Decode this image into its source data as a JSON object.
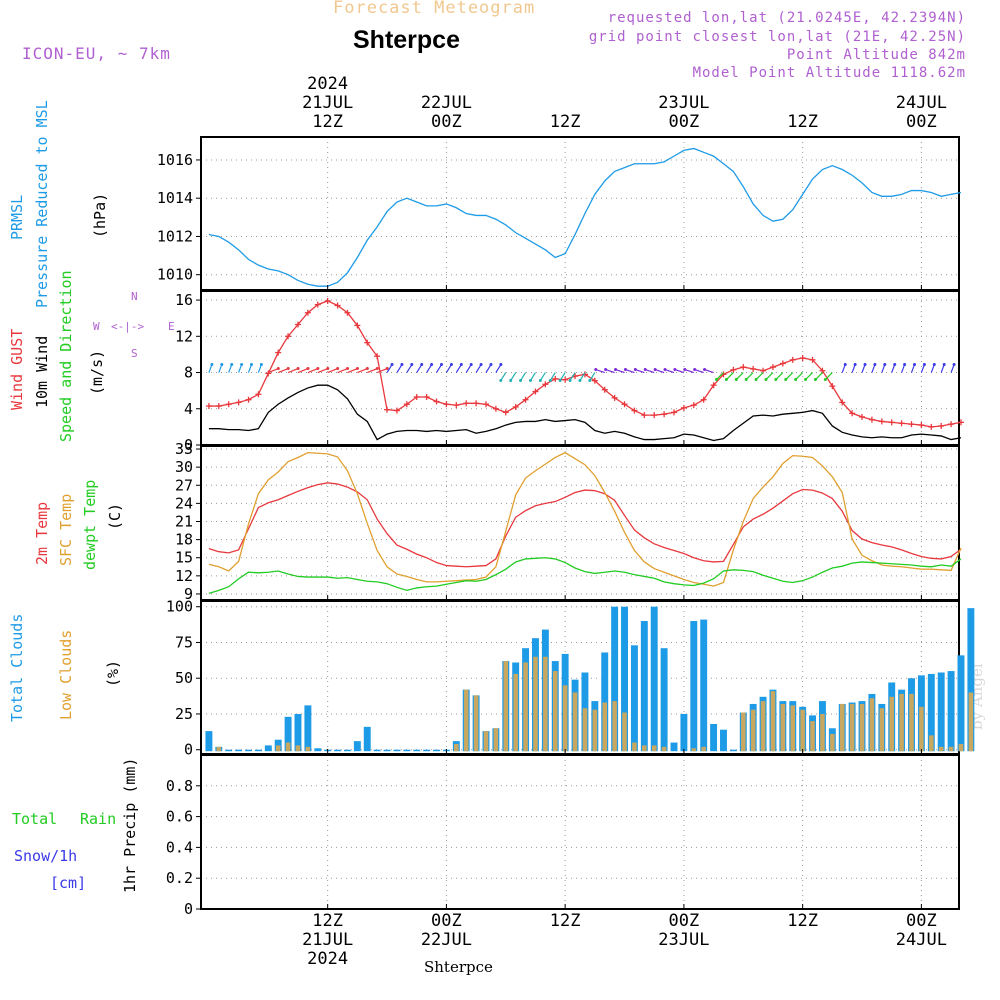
{
  "header": {
    "subtitle": "Forecast Meteogram",
    "location": "Shterpce",
    "model": "ICON-EU, ~ 7km",
    "requested": "requested lon,lat (21.0245E, 42.2394N)",
    "grid_point": "grid point closest lon,lat (21E, 42.25N)",
    "point_altitude": "Point Altitude 842m",
    "model_altitude": "Model Point Altitude 1118.62m",
    "footer_location": "Shterpce",
    "signature": "by Angel"
  },
  "time_axis_top": [
    {
      "h": 12,
      "lines": [
        "2024",
        "21JUL",
        "12Z"
      ]
    },
    {
      "h": 24,
      "lines": [
        "22JUL",
        "00Z"
      ]
    },
    {
      "h": 36,
      "lines": [
        "12Z"
      ]
    },
    {
      "h": 48,
      "lines": [
        "23JUL",
        "00Z"
      ]
    },
    {
      "h": 60,
      "lines": [
        "12Z"
      ]
    },
    {
      "h": 72,
      "lines": [
        "24JUL",
        "00Z"
      ]
    }
  ],
  "time_axis_bottom": [
    {
      "h": 12,
      "lines": [
        "12Z",
        "21JUL",
        "2024"
      ]
    },
    {
      "h": 24,
      "lines": [
        "00Z",
        "22JUL"
      ]
    },
    {
      "h": 36,
      "lines": [
        "12Z"
      ]
    },
    {
      "h": 48,
      "lines": [
        "00Z",
        "23JUL"
      ]
    },
    {
      "h": 60,
      "lines": [
        "12Z"
      ]
    },
    {
      "h": 72,
      "lines": [
        "00Z",
        "24JUL"
      ]
    }
  ],
  "panel_labels": {
    "pressure": {
      "line1": "PRMSL",
      "line2": "Pressure Reduced to MSL",
      "unit": "(hPa)"
    },
    "wind": {
      "gust": "Wind GUST",
      "wind10": "10m Wind",
      "speed_dir": "Speed and Direction",
      "unit": "(m/s)",
      "compass_n": "N",
      "compass_s": "S",
      "compass_w": "W",
      "compass_e": "E"
    },
    "temp": {
      "t2m": "2m Temp",
      "sfc": "SFC Temp",
      "dewpt": "dewpt Temp",
      "unit": "(C)"
    },
    "clouds": {
      "total": "Total Clouds",
      "low": "Low Clouds",
      "unit": "(%)"
    },
    "precip": {
      "total": "Total",
      "rain": "Rain",
      "snow": "Snow/1h",
      "snow_unit": "[cm]",
      "axis": "1hr Precip (mm)"
    }
  },
  "colors": {
    "pressure": "#1e9be6",
    "gust": "#e8383d",
    "wind10": "#000000",
    "t2m": "#e8383d",
    "sfc": "#e0a030",
    "dewpt": "#22cc22",
    "total_cloud": "#1e9be6",
    "low_cloud": "#c8a860",
    "total_rain": "#22cc22",
    "snow": "#3a3ae6",
    "model": "#b060d0",
    "subtitle": "#f0c890"
  },
  "chart_data": [
    {
      "type": "line",
      "title": "PRMSL Pressure Reduced to MSL",
      "ylabel": "(hPa)",
      "x_unit": "hours from 21JUL 00Z",
      "ylim": [
        1009.2,
        1017.2
      ],
      "yticks": [
        1010,
        1012,
        1014,
        1016
      ],
      "series": [
        {
          "name": "PRMSL",
          "x": [
            0,
            1,
            2,
            3,
            4,
            5,
            6,
            7,
            8,
            9,
            10,
            11,
            12,
            13,
            14,
            15,
            16,
            17,
            18,
            19,
            20,
            21,
            22,
            23,
            24,
            25,
            26,
            27,
            28,
            29,
            30,
            31,
            32,
            33,
            34,
            35,
            36,
            37,
            38,
            39,
            40,
            41,
            42,
            43,
            44,
            45,
            46,
            47,
            48,
            49,
            50,
            51,
            52,
            53,
            54,
            55,
            56,
            57,
            58,
            59,
            60,
            61,
            62,
            63,
            64,
            65,
            66,
            67,
            68,
            69,
            70,
            71,
            72,
            73,
            74,
            75,
            76
          ],
          "values": [
            1012.1,
            1012.0,
            1011.7,
            1011.3,
            1010.8,
            1010.5,
            1010.3,
            1010.2,
            1010.0,
            1009.7,
            1009.5,
            1009.4,
            1009.4,
            1009.6,
            1010.1,
            1010.9,
            1011.8,
            1012.5,
            1013.3,
            1013.8,
            1014.0,
            1013.8,
            1013.6,
            1013.6,
            1013.7,
            1013.5,
            1013.2,
            1013.1,
            1013.1,
            1012.9,
            1012.6,
            1012.2,
            1011.9,
            1011.6,
            1011.3,
            1010.9,
            1011.1,
            1012.1,
            1013.2,
            1014.2,
            1014.9,
            1015.4,
            1015.6,
            1015.8,
            1015.8,
            1015.8,
            1015.9,
            1016.2,
            1016.5,
            1016.6,
            1016.4,
            1016.2,
            1015.8,
            1015.4,
            1014.6,
            1013.7,
            1013.1,
            1012.8,
            1012.9,
            1013.4,
            1014.2,
            1015.0,
            1015.5,
            1015.7,
            1015.5,
            1015.2,
            1014.8,
            1014.3,
            1014.1,
            1014.1,
            1014.2,
            1014.4,
            1014.4,
            1014.3,
            1014.1,
            1014.2,
            1014.3
          ]
        }
      ]
    },
    {
      "type": "line",
      "title": "Wind GUST / 10m Wind Speed and Direction",
      "ylabel": "(m/s)",
      "ylim": [
        0,
        17
      ],
      "yticks": [
        0,
        4,
        8,
        12,
        16
      ],
      "series": [
        {
          "name": "Wind GUST",
          "values": [
            4.3,
            4.3,
            4.5,
            4.7,
            5.0,
            5.6,
            7.9,
            10.2,
            12.0,
            13.3,
            14.6,
            15.5,
            15.9,
            15.4,
            14.6,
            13.2,
            11.3,
            9.8,
            3.9,
            3.8,
            4.5,
            5.3,
            5.3,
            4.8,
            4.5,
            4.4,
            4.6,
            4.6,
            4.5,
            4.0,
            3.6,
            4.2,
            5.0,
            5.9,
            6.7,
            7.3,
            7.2,
            7.6,
            7.8,
            7.1,
            6.1,
            5.2,
            4.5,
            3.8,
            3.3,
            3.3,
            3.4,
            3.6,
            4.1,
            4.4,
            5.0,
            6.6,
            7.8,
            8.3,
            8.6,
            8.4,
            8.2,
            8.6,
            9.0,
            9.4,
            9.6,
            9.4,
            8.2,
            6.5,
            4.7,
            3.5,
            3.1,
            2.8,
            2.6,
            2.5,
            2.4,
            2.3,
            2.2,
            2.0,
            2.1,
            2.3,
            2.5
          ]
        },
        {
          "name": "10m Wind",
          "values": [
            1.8,
            1.8,
            1.7,
            1.7,
            1.6,
            1.8,
            3.6,
            4.5,
            5.2,
            5.8,
            6.3,
            6.6,
            6.6,
            6.1,
            5.1,
            3.4,
            2.6,
            0.6,
            1.2,
            1.5,
            1.6,
            1.6,
            1.5,
            1.6,
            1.5,
            1.6,
            1.7,
            1.3,
            1.5,
            1.8,
            2.2,
            2.5,
            2.6,
            2.6,
            2.8,
            2.6,
            2.7,
            2.8,
            2.5,
            1.6,
            1.3,
            1.5,
            1.3,
            0.9,
            0.6,
            0.6,
            0.7,
            0.8,
            1.2,
            1.1,
            0.8,
            0.5,
            0.7,
            1.6,
            2.4,
            3.2,
            3.3,
            3.2,
            3.4,
            3.5,
            3.6,
            3.8,
            3.5,
            2.1,
            1.4,
            1.1,
            0.9,
            0.8,
            0.9,
            0.8,
            0.8,
            1.1,
            1.2,
            1.1,
            1.0,
            0.6,
            0.8
          ]
        }
      ]
    },
    {
      "type": "line",
      "title": "2m Temp / SFC Temp / dewpt Temp",
      "ylabel": "(C)",
      "ylim": [
        8,
        33.5
      ],
      "yticks": [
        9,
        12,
        15,
        18,
        21,
        24,
        27,
        30,
        33
      ],
      "series": [
        {
          "name": "2m Temp",
          "values": [
            16.5,
            16.0,
            15.8,
            16.3,
            19.8,
            23.3,
            24.1,
            24.6,
            25.3,
            26.0,
            26.6,
            27.1,
            27.4,
            27.2,
            26.7,
            25.9,
            24.6,
            21.4,
            19.0,
            17.1,
            16.4,
            15.6,
            15.0,
            14.2,
            13.7,
            13.6,
            13.5,
            13.6,
            13.7,
            14.8,
            18.6,
            21.7,
            22.8,
            23.6,
            24.0,
            24.3,
            25.0,
            25.8,
            26.2,
            26.1,
            25.6,
            24.5,
            22.0,
            19.6,
            18.3,
            17.3,
            16.7,
            16.2,
            15.7,
            15.0,
            14.5,
            14.3,
            14.4,
            17.2,
            20.1,
            21.4,
            22.2,
            23.2,
            24.4,
            25.6,
            26.3,
            26.2,
            25.7,
            24.8,
            22.7,
            19.5,
            18.1,
            17.5,
            17.1,
            16.8,
            16.3,
            15.7,
            15.2,
            14.9,
            14.8,
            15.2,
            16.4
          ]
        },
        {
          "name": "SFC Temp",
          "values": [
            13.9,
            13.5,
            12.8,
            14.4,
            20.6,
            25.6,
            27.9,
            29.2,
            30.9,
            31.6,
            32.4,
            32.3,
            32.2,
            31.7,
            29.4,
            25.6,
            20.7,
            16.2,
            13.5,
            12.3,
            11.9,
            11.4,
            11.0,
            11.0,
            11.1,
            11.2,
            11.3,
            11.4,
            11.8,
            13.5,
            19.4,
            25.4,
            28.2,
            29.4,
            30.5,
            31.6,
            32.4,
            31.4,
            30.4,
            28.6,
            25.8,
            22.7,
            19.2,
            16.2,
            14.3,
            13.2,
            12.6,
            12.0,
            11.4,
            10.9,
            10.6,
            10.3,
            10.9,
            16.3,
            21.0,
            24.8,
            26.7,
            28.4,
            30.6,
            31.9,
            31.8,
            31.6,
            30.2,
            28.4,
            25.8,
            18.1,
            15.4,
            14.5,
            13.8,
            13.6,
            13.5,
            13.3,
            13.1,
            13.1,
            13.0,
            12.9,
            16.6
          ]
        },
        {
          "name": "dewpt Temp",
          "values": [
            9.1,
            9.6,
            10.2,
            11.5,
            12.6,
            12.5,
            12.6,
            12.8,
            12.3,
            11.9,
            11.8,
            11.8,
            11.8,
            11.6,
            11.7,
            11.4,
            11.1,
            11.0,
            10.7,
            10.1,
            9.6,
            10.0,
            10.2,
            10.3,
            10.6,
            10.9,
            11.2,
            11.1,
            11.4,
            12.2,
            13.1,
            14.3,
            14.8,
            14.9,
            15.0,
            14.8,
            14.2,
            13.3,
            12.7,
            12.4,
            12.6,
            12.8,
            12.6,
            12.2,
            11.9,
            11.6,
            11.0,
            10.7,
            10.5,
            10.4,
            10.8,
            11.5,
            12.8,
            13.0,
            12.9,
            12.7,
            12.1,
            11.6,
            11.1,
            10.9,
            11.2,
            11.8,
            12.6,
            13.3,
            13.6,
            14.1,
            14.3,
            14.2,
            14.1,
            14.0,
            13.9,
            13.8,
            13.6,
            13.5,
            13.8,
            13.6,
            14.8
          ]
        }
      ]
    },
    {
      "type": "bar",
      "title": "Total Clouds / Low Clouds",
      "ylabel": "(%)",
      "ylim": [
        -3,
        104
      ],
      "yticks": [
        0,
        25,
        50,
        75,
        100
      ],
      "series": [
        {
          "name": "Total Clouds",
          "values": [
            13,
            2,
            0,
            0,
            0,
            0,
            3,
            7,
            23,
            25,
            31,
            1,
            0,
            0,
            0,
            6,
            16,
            0,
            0,
            0,
            0,
            0,
            0,
            0,
            0,
            6,
            42,
            38,
            13,
            15,
            62,
            61,
            71,
            78,
            84,
            62,
            67,
            49,
            54,
            34,
            68,
            100,
            100,
            73,
            90,
            100,
            71,
            5,
            25,
            90,
            91,
            18,
            14,
            0,
            26,
            32,
            37,
            42,
            34,
            34,
            30,
            24,
            34,
            15,
            32,
            33,
            34,
            39,
            32,
            47,
            42,
            50,
            52,
            53,
            54,
            55,
            66,
            99
          ]
        },
        {
          "name": "Low Clouds",
          "values": [
            0,
            2,
            0,
            0,
            0,
            0,
            0,
            3,
            5,
            3,
            2,
            0,
            0,
            0,
            0,
            0,
            0,
            0,
            0,
            0,
            0,
            0,
            0,
            0,
            0,
            4,
            42,
            38,
            13,
            15,
            62,
            53,
            61,
            65,
            65,
            55,
            45,
            40,
            29,
            28,
            33,
            34,
            26,
            5,
            3,
            3,
            2,
            0,
            0,
            1,
            2,
            0,
            0,
            0,
            26,
            28,
            34,
            41,
            32,
            31,
            28,
            20,
            25,
            11,
            32,
            32,
            32,
            36,
            29,
            37,
            39,
            39,
            30,
            10,
            2,
            2,
            4,
            40
          ]
        }
      ]
    },
    {
      "type": "bar",
      "title": "1hr Precip (mm)",
      "ylabel": "1hr Precip (mm)",
      "ylim": [
        0,
        1.0
      ],
      "yticks": [
        0,
        0.2,
        0.4,
        0.6,
        0.8
      ],
      "series": [
        {
          "name": "Total Rain",
          "values": []
        },
        {
          "name": "Snow/1h",
          "values": []
        }
      ]
    }
  ]
}
